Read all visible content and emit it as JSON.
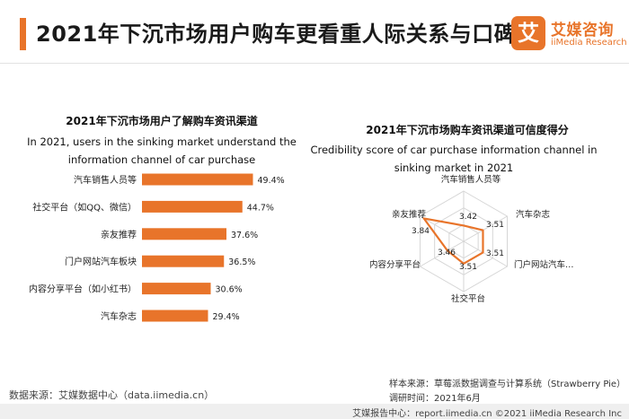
{
  "header": {
    "title": "2021年下沉市场用户购车更看重人际关系与口碑",
    "logo_mark": "艾",
    "logo_cn": "艾媒咨询",
    "logo_en": "iiMedia Research"
  },
  "chart_data": [
    {
      "type": "bar",
      "orientation": "horizontal",
      "title": "2021年下沉市场用户了解购车资讯渠道",
      "subtitle": "In 2021, users in the sinking market understand the information channel of car purchase",
      "categories": [
        "汽车销售人员等",
        "社交平台（如QQ、微信）",
        "亲友推荐",
        "门户网站汽车板块",
        "内容分享平台（如小红书）",
        "汽车杂志"
      ],
      "values": [
        49.4,
        44.7,
        37.6,
        36.5,
        30.6,
        29.4
      ],
      "value_labels": [
        "49.4%",
        "44.7%",
        "37.6%",
        "36.5%",
        "30.6%",
        "29.4%"
      ],
      "unit": "%",
      "color": "#e8742a",
      "xlim": [
        0,
        56
      ]
    },
    {
      "type": "radar",
      "title": "2021年下沉市场购车资讯渠道可信度得分",
      "subtitle": "Credibility score of car purchase information channel in sinking market in 2021",
      "axes": [
        "汽车销售人员等",
        "汽车杂志",
        "门户网站汽车…",
        "社交平台",
        "内容分享平台",
        "亲友推荐"
      ],
      "values": [
        3.42,
        3.51,
        3.51,
        3.51,
        3.46,
        3.84
      ],
      "value_labels": [
        "3.42",
        "3.51",
        "3.51",
        "3.51",
        "3.46",
        "3.84"
      ],
      "range": [
        3.2,
        3.9
      ],
      "grid_levels": 3,
      "color": "#e8742a"
    }
  ],
  "notes": {
    "source": "数据来源：艾媒数据中心（data.iimedia.cn）",
    "sample": "样本来源：草莓派数据调查与计算系统（Strawberry Pie）",
    "survey_time": "调研时间：2021年6月"
  },
  "footer": "艾媒报告中心：report.iimedia.cn   ©2021 iiMedia Research Inc"
}
